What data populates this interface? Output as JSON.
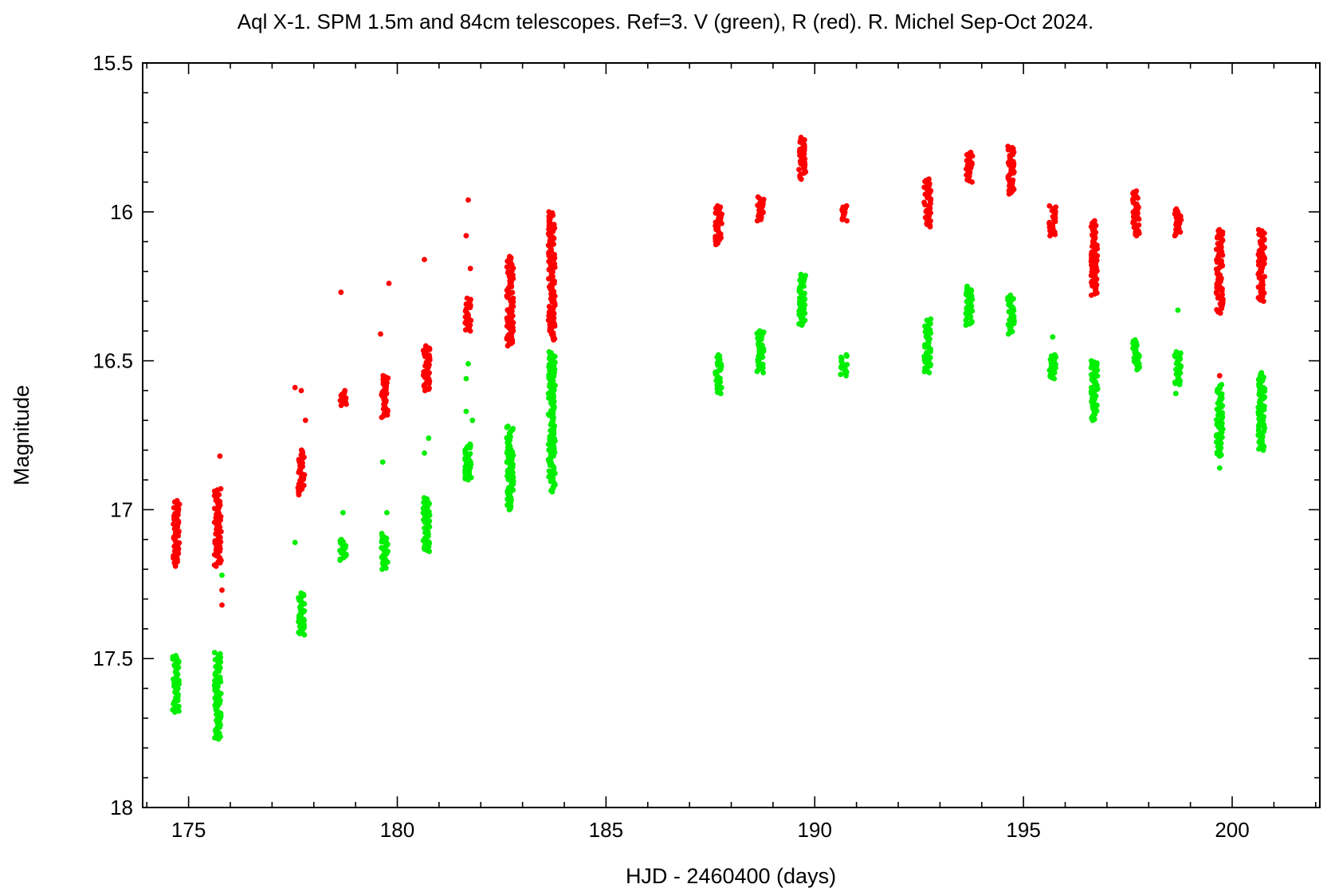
{
  "chart_data": {
    "type": "scatter",
    "title": "Aql X-1. SPM 1.5m and 84cm telescopes. Ref=3. V (green), R (red). R. Michel Sep-Oct 2024.",
    "xlabel": "HJD - 2460400 (days)",
    "ylabel": "Magnitude",
    "xlim": [
      173.9,
      202.1
    ],
    "ylim": [
      18.0,
      15.5
    ],
    "y_inverted": true,
    "x_ticks": [
      175,
      180,
      185,
      190,
      195,
      200
    ],
    "x_tick_labels": [
      "175",
      "180",
      "185",
      "190",
      "195",
      "200"
    ],
    "x_minor_step": 1,
    "y_ticks": [
      15.5,
      16.0,
      16.5,
      17.0,
      17.5,
      18.0
    ],
    "y_tick_labels": [
      "15.5",
      "16",
      "16.5",
      "17",
      "17.5",
      "18"
    ],
    "y_minor_step": 0.1,
    "grid": false,
    "legend": "none",
    "series": [
      {
        "color": "#ff0000",
        "clusters": [
          {
            "x": 174.7,
            "ymin": 16.97,
            "ymax": 17.19
          },
          {
            "x": 175.7,
            "ymin": 16.93,
            "ymax": 17.19
          },
          {
            "x": 177.7,
            "ymin": 16.8,
            "ymax": 16.95
          },
          {
            "x": 178.7,
            "ymin": 16.6,
            "ymax": 16.65
          },
          {
            "x": 179.7,
            "ymin": 16.55,
            "ymax": 16.69
          },
          {
            "x": 180.7,
            "ymin": 16.45,
            "ymax": 16.6
          },
          {
            "x": 181.7,
            "ymin": 16.29,
            "ymax": 16.4
          },
          {
            "x": 182.7,
            "ymin": 16.15,
            "ymax": 16.45
          },
          {
            "x": 183.7,
            "ymin": 16.0,
            "ymax": 16.43
          },
          {
            "x": 187.7,
            "ymin": 15.98,
            "ymax": 16.11
          },
          {
            "x": 188.7,
            "ymin": 15.95,
            "ymax": 16.03
          },
          {
            "x": 189.7,
            "ymin": 15.75,
            "ymax": 15.89
          },
          {
            "x": 190.7,
            "ymin": 15.98,
            "ymax": 16.03
          },
          {
            "x": 192.7,
            "ymin": 15.89,
            "ymax": 16.05
          },
          {
            "x": 193.7,
            "ymin": 15.8,
            "ymax": 15.9
          },
          {
            "x": 194.7,
            "ymin": 15.78,
            "ymax": 15.94
          },
          {
            "x": 195.7,
            "ymin": 15.98,
            "ymax": 16.08
          },
          {
            "x": 196.7,
            "ymin": 16.03,
            "ymax": 16.28
          },
          {
            "x": 197.7,
            "ymin": 15.93,
            "ymax": 16.08
          },
          {
            "x": 198.7,
            "ymin": 15.99,
            "ymax": 16.08
          },
          {
            "x": 199.7,
            "ymin": 16.06,
            "ymax": 16.34
          },
          {
            "x": 200.7,
            "ymin": 16.06,
            "ymax": 16.3
          }
        ],
        "outliers": [
          {
            "x": 175.75,
            "y": 16.82
          },
          {
            "x": 175.8,
            "y": 17.27
          },
          {
            "x": 175.8,
            "y": 17.32
          },
          {
            "x": 177.55,
            "y": 16.59
          },
          {
            "x": 177.7,
            "y": 16.6
          },
          {
            "x": 177.8,
            "y": 16.7
          },
          {
            "x": 178.65,
            "y": 16.27
          },
          {
            "x": 179.6,
            "y": 16.41
          },
          {
            "x": 179.8,
            "y": 16.24
          },
          {
            "x": 180.65,
            "y": 16.16
          },
          {
            "x": 181.7,
            "y": 15.96
          },
          {
            "x": 181.65,
            "y": 16.08
          },
          {
            "x": 181.75,
            "y": 16.19
          },
          {
            "x": 199.7,
            "y": 16.55
          }
        ]
      },
      {
        "color": "#00ee00",
        "clusters": [
          {
            "x": 174.7,
            "ymin": 17.49,
            "ymax": 17.68
          },
          {
            "x": 175.7,
            "ymin": 17.48,
            "ymax": 17.77
          },
          {
            "x": 177.7,
            "ymin": 17.28,
            "ymax": 17.42
          },
          {
            "x": 178.7,
            "ymin": 17.1,
            "ymax": 17.17
          },
          {
            "x": 179.7,
            "ymin": 17.08,
            "ymax": 17.2
          },
          {
            "x": 180.7,
            "ymin": 16.96,
            "ymax": 17.14
          },
          {
            "x": 181.7,
            "ymin": 16.78,
            "ymax": 16.9
          },
          {
            "x": 182.7,
            "ymin": 16.72,
            "ymax": 17.0
          },
          {
            "x": 183.7,
            "ymin": 16.47,
            "ymax": 16.94
          },
          {
            "x": 187.7,
            "ymin": 16.48,
            "ymax": 16.61
          },
          {
            "x": 188.7,
            "ymin": 16.4,
            "ymax": 16.54
          },
          {
            "x": 189.7,
            "ymin": 16.21,
            "ymax": 16.38
          },
          {
            "x": 190.7,
            "ymin": 16.48,
            "ymax": 16.55
          },
          {
            "x": 192.7,
            "ymin": 16.36,
            "ymax": 16.54
          },
          {
            "x": 193.7,
            "ymin": 16.25,
            "ymax": 16.38
          },
          {
            "x": 194.7,
            "ymin": 16.28,
            "ymax": 16.41
          },
          {
            "x": 195.7,
            "ymin": 16.48,
            "ymax": 16.56
          },
          {
            "x": 196.7,
            "ymin": 16.5,
            "ymax": 16.7
          },
          {
            "x": 197.7,
            "ymin": 16.43,
            "ymax": 16.53
          },
          {
            "x": 198.7,
            "ymin": 16.47,
            "ymax": 16.58
          },
          {
            "x": 199.7,
            "ymin": 16.58,
            "ymax": 16.82
          },
          {
            "x": 200.7,
            "ymin": 16.54,
            "ymax": 16.8
          }
        ],
        "outliers": [
          {
            "x": 175.8,
            "y": 17.22
          },
          {
            "x": 177.55,
            "y": 17.11
          },
          {
            "x": 178.7,
            "y": 17.01
          },
          {
            "x": 179.65,
            "y": 16.84
          },
          {
            "x": 179.75,
            "y": 17.01
          },
          {
            "x": 180.65,
            "y": 16.81
          },
          {
            "x": 180.75,
            "y": 16.76
          },
          {
            "x": 181.7,
            "y": 16.51
          },
          {
            "x": 181.65,
            "y": 16.67
          },
          {
            "x": 181.8,
            "y": 16.7
          },
          {
            "x": 181.65,
            "y": 16.56
          },
          {
            "x": 195.7,
            "y": 16.42
          },
          {
            "x": 198.7,
            "y": 16.33
          },
          {
            "x": 198.65,
            "y": 16.61
          },
          {
            "x": 199.7,
            "y": 16.86
          }
        ]
      }
    ]
  }
}
